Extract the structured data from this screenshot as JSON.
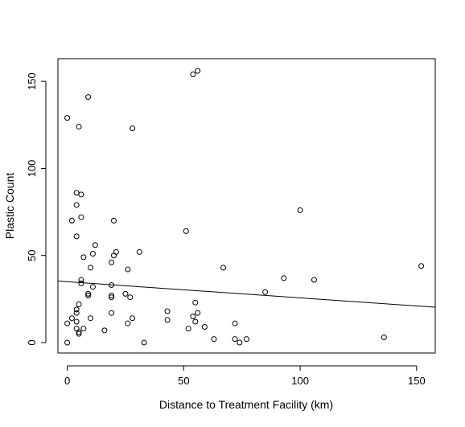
{
  "chart_data": {
    "type": "scatter",
    "title": "",
    "xlabel": "Distance to Treatment Facility (km)",
    "ylabel": "Plastic Count",
    "xlim": [
      -4,
      158
    ],
    "ylim": [
      -6,
      163
    ],
    "x_ticks": [
      0,
      50,
      100,
      150
    ],
    "y_ticks": [
      0,
      50,
      100,
      150
    ],
    "grid": false,
    "legend": "none",
    "point_color": "#000000",
    "points": [
      {
        "x": 0,
        "y": 129
      },
      {
        "x": 5,
        "y": 124
      },
      {
        "x": 9,
        "y": 141
      },
      {
        "x": 28,
        "y": 123
      },
      {
        "x": 54,
        "y": 154
      },
      {
        "x": 56,
        "y": 156
      },
      {
        "x": 100,
        "y": 76
      },
      {
        "x": 51,
        "y": 64
      },
      {
        "x": 4,
        "y": 86
      },
      {
        "x": 6,
        "y": 85
      },
      {
        "x": 4,
        "y": 79
      },
      {
        "x": 6,
        "y": 72
      },
      {
        "x": 2,
        "y": 70
      },
      {
        "x": 20,
        "y": 70
      },
      {
        "x": 4,
        "y": 61
      },
      {
        "x": 12,
        "y": 56
      },
      {
        "x": 21,
        "y": 52
      },
      {
        "x": 31,
        "y": 52
      },
      {
        "x": 11,
        "y": 51
      },
      {
        "x": 20,
        "y": 50
      },
      {
        "x": 7,
        "y": 49
      },
      {
        "x": 19,
        "y": 46
      },
      {
        "x": 152,
        "y": 44
      },
      {
        "x": 67,
        "y": 43
      },
      {
        "x": 10,
        "y": 43
      },
      {
        "x": 26,
        "y": 42
      },
      {
        "x": 93,
        "y": 37
      },
      {
        "x": 106,
        "y": 36
      },
      {
        "x": 6,
        "y": 36
      },
      {
        "x": 6,
        "y": 34
      },
      {
        "x": 19,
        "y": 33
      },
      {
        "x": 11,
        "y": 32
      },
      {
        "x": 85,
        "y": 29
      },
      {
        "x": 9,
        "y": 28
      },
      {
        "x": 25,
        "y": 28
      },
      {
        "x": 19,
        "y": 27
      },
      {
        "x": 9,
        "y": 27
      },
      {
        "x": 27,
        "y": 26
      },
      {
        "x": 19,
        "y": 26
      },
      {
        "x": 55,
        "y": 23
      },
      {
        "x": 5,
        "y": 22
      },
      {
        "x": 4,
        "y": 19
      },
      {
        "x": 19,
        "y": 17
      },
      {
        "x": 43,
        "y": 18
      },
      {
        "x": 4,
        "y": 17
      },
      {
        "x": 56,
        "y": 17
      },
      {
        "x": 54,
        "y": 15
      },
      {
        "x": 28,
        "y": 14
      },
      {
        "x": 10,
        "y": 14
      },
      {
        "x": 2,
        "y": 14
      },
      {
        "x": 43,
        "y": 13
      },
      {
        "x": 4,
        "y": 12
      },
      {
        "x": 55,
        "y": 12
      },
      {
        "x": 26,
        "y": 11
      },
      {
        "x": 72,
        "y": 11
      },
      {
        "x": 0,
        "y": 11
      },
      {
        "x": 59,
        "y": 9
      },
      {
        "x": 7,
        "y": 8
      },
      {
        "x": 4,
        "y": 8
      },
      {
        "x": 52,
        "y": 8
      },
      {
        "x": 16,
        "y": 7
      },
      {
        "x": 5,
        "y": 6
      },
      {
        "x": 5,
        "y": 5
      },
      {
        "x": 136,
        "y": 3
      },
      {
        "x": 63,
        "y": 2
      },
      {
        "x": 72,
        "y": 2
      },
      {
        "x": 77,
        "y": 2
      },
      {
        "x": 0,
        "y": 0
      },
      {
        "x": 33,
        "y": 0
      },
      {
        "x": 74,
        "y": 0
      }
    ],
    "trend_line": {
      "x": [
        -4,
        158
      ],
      "y": [
        35.3,
        20.3
      ]
    }
  }
}
